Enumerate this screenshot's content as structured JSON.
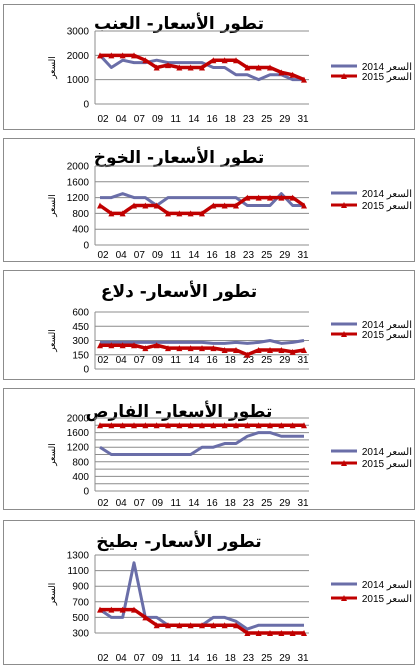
{
  "colors": {
    "series2014": "#6a6ea8",
    "series2015": "#c00000",
    "grid": "#8c8c8c",
    "axis": "#8c8c8c"
  },
  "legend_position": "right",
  "chart_data": [
    {
      "type": "line",
      "title": "تطور الأسعار- العنب",
      "ylabel": "السعر",
      "ylim": [
        0,
        3000
      ],
      "yticks": [
        0,
        1000,
        2000,
        3000
      ],
      "xticklabels": [
        "02",
        "04",
        "07",
        "09",
        "11",
        "14",
        "16",
        "18",
        "23",
        "25",
        "29",
        "31"
      ],
      "series": [
        {
          "name": "السعر 2014",
          "values": [
            2000,
            1500,
            1800,
            1700,
            1700,
            1800,
            1700,
            1700,
            1700,
            1700,
            1500,
            1500,
            1200,
            1200,
            1000,
            1200,
            1200,
            1000,
            1000
          ]
        },
        {
          "name": "السعر 2015",
          "values": [
            2000,
            2000,
            2000,
            2000,
            1800,
            1500,
            1600,
            1500,
            1500,
            1500,
            1800,
            1800,
            1800,
            1500,
            1500,
            1500,
            1300,
            1200,
            1000
          ]
        }
      ]
    },
    {
      "type": "line",
      "title": "تطور الأسعار- الخوخ",
      "ylabel": "السعر",
      "ylim": [
        0,
        2000
      ],
      "yticks": [
        0,
        400,
        800,
        1200,
        1600,
        2000
      ],
      "xticklabels": [
        "02",
        "04",
        "07",
        "09",
        "11",
        "14",
        "16",
        "18",
        "23",
        "25",
        "29",
        "31"
      ],
      "series": [
        {
          "name": "السعر 2014",
          "values": [
            1200,
            1200,
            1300,
            1200,
            1200,
            1000,
            1200,
            1200,
            1200,
            1200,
            1200,
            1200,
            1200,
            1000,
            1000,
            1000,
            1300,
            1000,
            1000
          ]
        },
        {
          "name": "السعر 2015",
          "values": [
            1000,
            800,
            800,
            1000,
            1000,
            1000,
            800,
            800,
            800,
            800,
            1000,
            1000,
            1000,
            1200,
            1200,
            1200,
            1200,
            1200,
            1000
          ]
        }
      ]
    },
    {
      "type": "line",
      "title": "تطور الأسعار- دلاع",
      "ylabel": "السعر",
      "ylim": [
        0,
        600
      ],
      "yticks": [
        0,
        150,
        300,
        450,
        600
      ],
      "xticklabels": [
        "02",
        "04",
        "07",
        "09",
        "11",
        "14",
        "16",
        "18",
        "23",
        "25",
        "29",
        "31"
      ],
      "series": [
        {
          "name": "السعر 2014",
          "values": [
            280,
            280,
            280,
            280,
            280,
            280,
            280,
            280,
            280,
            280,
            270,
            270,
            280,
            270,
            280,
            300,
            270,
            280,
            300
          ]
        },
        {
          "name": "السعر 2015",
          "values": [
            250,
            250,
            250,
            250,
            220,
            250,
            220,
            220,
            220,
            220,
            220,
            200,
            200,
            150,
            200,
            200,
            200,
            180,
            200
          ]
        }
      ]
    },
    {
      "type": "line",
      "title": "تطور الأسعار- الفارص",
      "ylabel": "السعر",
      "ylim": [
        0,
        2000
      ],
      "yticks": [
        0,
        400,
        800,
        1200,
        1600,
        2000
      ],
      "ytickstep": 200,
      "xticklabels": [
        "02",
        "04",
        "07",
        "09",
        "11",
        "14",
        "16",
        "18",
        "23",
        "25",
        "29",
        "31"
      ],
      "series": [
        {
          "name": "السعر 2014",
          "values": [
            1200,
            1000,
            1000,
            1000,
            1000,
            1000,
            1000,
            1000,
            1000,
            1200,
            1200,
            1300,
            1300,
            1500,
            1600,
            1600,
            1500,
            1500,
            1500
          ]
        },
        {
          "name": "السعر 2015",
          "values": [
            1800,
            1800,
            1800,
            1800,
            1800,
            1800,
            1800,
            1800,
            1800,
            1800,
            1800,
            1800,
            1800,
            1800,
            1800,
            1800,
            1800,
            1800,
            1800
          ]
        }
      ]
    },
    {
      "type": "line",
      "title": "تطور الأسعار- بطيخ",
      "ylabel": "السعر",
      "ylim": [
        300,
        1300
      ],
      "yticks": [
        300,
        500,
        700,
        900,
        1100,
        1300
      ],
      "xticklabels": [
        "02",
        "04",
        "07",
        "09",
        "11",
        "14",
        "16",
        "18",
        "23",
        "25",
        "29",
        "31"
      ],
      "series": [
        {
          "name": "السعر 2014",
          "values": [
            600,
            500,
            500,
            1200,
            500,
            500,
            400,
            400,
            400,
            400,
            500,
            500,
            450,
            350,
            400,
            400,
            400,
            400,
            400
          ]
        },
        {
          "name": "السعر 2015",
          "values": [
            600,
            600,
            600,
            600,
            500,
            400,
            400,
            400,
            400,
            400,
            400,
            400,
            400,
            300,
            300,
            300,
            300,
            300,
            300
          ]
        }
      ]
    }
  ]
}
